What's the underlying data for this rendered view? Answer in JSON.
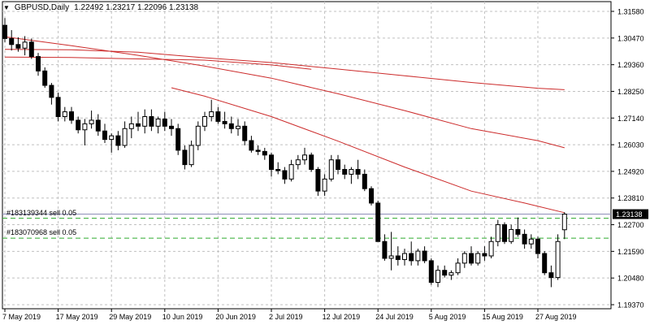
{
  "header": {
    "symbol_timeframe": "GBPUSD,Daily",
    "ohlc": "1.22492 1.23217 1.22096 1.23138",
    "menu_icon": "triangle-down-icon"
  },
  "orders": [
    {
      "label": "#183139344 sell 0.05",
      "price": 1.2297
    },
    {
      "label": "#183070968 sell 0.05",
      "price": 1.2214
    }
  ],
  "bid_label": "1.23138",
  "colors": {
    "background": "#ffffff",
    "grid": "#c0c0c0",
    "candle": "#000000",
    "ma": "#cc2b2b",
    "order_line": "#2eaa2e",
    "bid_line": "#8e8eb8",
    "bid_label_bg": "#000000"
  },
  "chart_data": {
    "type": "candlestick",
    "symbol": "GBPUSD",
    "timeframe": "Daily",
    "price_ticks": [
      "1.31580",
      "1.30470",
      "1.29360",
      "1.28250",
      "1.27140",
      "1.26030",
      "1.24920",
      "1.23810",
      "1.22700",
      "1.21590",
      "1.20480",
      "1.19370"
    ],
    "ylim": [
      1.1937,
      1.3158
    ],
    "date_labels": [
      {
        "label": "7 May 2019",
        "index": 0
      },
      {
        "label": "17 May 2019",
        "index": 8
      },
      {
        "label": "29 May 2019",
        "index": 16
      },
      {
        "label": "10 Jun 2019",
        "index": 24
      },
      {
        "label": "20 Jun 2019",
        "index": 32
      },
      {
        "label": "2 Jul 2019",
        "index": 40
      },
      {
        "label": "12 Jul 2019",
        "index": 48
      },
      {
        "label": "24 Jul 2019",
        "index": 56
      },
      {
        "label": "5 Aug 2019",
        "index": 64
      },
      {
        "label": "15 Aug 2019",
        "index": 72
      },
      {
        "label": "27 Aug 2019",
        "index": 80
      }
    ],
    "candles": [
      [
        1.31,
        1.313,
        1.303,
        1.3045
      ],
      [
        1.3045,
        1.308,
        1.2995,
        1.302
      ],
      [
        1.302,
        1.305,
        1.299,
        1.3005
      ],
      [
        1.3005,
        1.3055,
        1.2975,
        1.303
      ],
      [
        1.303,
        1.3045,
        1.296,
        1.297
      ],
      [
        1.297,
        1.2985,
        1.289,
        1.291
      ],
      [
        1.291,
        1.2925,
        1.284,
        1.285
      ],
      [
        1.285,
        1.286,
        1.277,
        1.28
      ],
      [
        1.28,
        1.282,
        1.27,
        1.272
      ],
      [
        1.272,
        1.276,
        1.27,
        1.274
      ],
      [
        1.274,
        1.276,
        1.269,
        1.2705
      ],
      [
        1.2705,
        1.272,
        1.265,
        1.2665
      ],
      [
        1.2665,
        1.271,
        1.26,
        1.269
      ],
      [
        1.269,
        1.2745,
        1.267,
        1.2705
      ],
      [
        1.2705,
        1.273,
        1.264,
        1.266
      ],
      [
        1.266,
        1.269,
        1.261,
        1.2625
      ],
      [
        1.2625,
        1.265,
        1.257,
        1.264
      ],
      [
        1.264,
        1.266,
        1.258,
        1.26
      ],
      [
        1.26,
        1.27,
        1.259,
        1.267
      ],
      [
        1.267,
        1.272,
        1.263,
        1.269
      ],
      [
        1.269,
        1.274,
        1.266,
        1.268
      ],
      [
        1.268,
        1.275,
        1.265,
        1.272
      ],
      [
        1.272,
        1.275,
        1.266,
        1.268
      ],
      [
        1.268,
        1.272,
        1.265,
        1.271
      ],
      [
        1.271,
        1.274,
        1.266,
        1.268
      ],
      [
        1.268,
        1.271,
        1.264,
        1.267
      ],
      [
        1.267,
        1.269,
        1.256,
        1.258
      ],
      [
        1.258,
        1.26,
        1.25,
        1.252
      ],
      [
        1.252,
        1.262,
        1.251,
        1.26
      ],
      [
        1.26,
        1.27,
        1.258,
        1.268
      ],
      [
        1.268,
        1.274,
        1.266,
        1.272
      ],
      [
        1.272,
        1.279,
        1.27,
        1.274
      ],
      [
        1.274,
        1.276,
        1.269,
        1.27
      ],
      [
        1.27,
        1.274,
        1.267,
        1.269
      ],
      [
        1.269,
        1.272,
        1.265,
        1.267
      ],
      [
        1.267,
        1.271,
        1.264,
        1.268
      ],
      [
        1.268,
        1.27,
        1.26,
        1.262
      ],
      [
        1.262,
        1.264,
        1.257,
        1.258
      ],
      [
        1.258,
        1.26,
        1.256,
        1.2575
      ],
      [
        1.2575,
        1.259,
        1.254,
        1.256
      ],
      [
        1.256,
        1.257,
        1.247,
        1.25
      ],
      [
        1.25,
        1.253,
        1.248,
        1.2495
      ],
      [
        1.2495,
        1.251,
        1.244,
        1.246
      ],
      [
        1.246,
        1.254,
        1.245,
        1.252
      ],
      [
        1.252,
        1.256,
        1.25,
        1.254
      ],
      [
        1.254,
        1.259,
        1.252,
        1.256
      ],
      [
        1.256,
        1.257,
        1.249,
        1.25
      ],
      [
        1.25,
        1.251,
        1.239,
        1.241
      ],
      [
        1.241,
        1.248,
        1.239,
        1.246
      ],
      [
        1.246,
        1.256,
        1.245,
        1.254
      ],
      [
        1.254,
        1.256,
        1.248,
        1.25
      ],
      [
        1.25,
        1.252,
        1.246,
        1.248
      ],
      [
        1.248,
        1.251,
        1.244,
        1.25
      ],
      [
        1.25,
        1.254,
        1.246,
        1.248
      ],
      [
        1.248,
        1.25,
        1.241,
        1.242
      ],
      [
        1.242,
        1.243,
        1.235,
        1.236
      ],
      [
        1.236,
        1.237,
        1.22,
        1.22
      ],
      [
        1.22,
        1.223,
        1.212,
        1.213
      ],
      [
        1.213,
        1.224,
        1.208,
        1.214
      ],
      [
        1.214,
        1.218,
        1.21,
        1.2125
      ],
      [
        1.2125,
        1.217,
        1.21,
        1.215
      ],
      [
        1.215,
        1.22,
        1.21,
        1.212
      ],
      [
        1.212,
        1.217,
        1.21,
        1.216
      ],
      [
        1.216,
        1.218,
        1.211,
        1.212
      ],
      [
        1.212,
        1.213,
        1.202,
        1.203
      ],
      [
        1.203,
        1.21,
        1.201,
        1.208
      ],
      [
        1.208,
        1.21,
        1.205,
        1.206
      ],
      [
        1.206,
        1.208,
        1.204,
        1.207
      ],
      [
        1.207,
        1.213,
        1.206,
        1.211
      ],
      [
        1.211,
        1.216,
        1.209,
        1.215
      ],
      [
        1.215,
        1.218,
        1.21,
        1.211
      ],
      [
        1.211,
        1.216,
        1.21,
        1.215
      ],
      [
        1.215,
        1.218,
        1.212,
        1.214
      ],
      [
        1.214,
        1.222,
        1.213,
        1.22
      ],
      [
        1.22,
        1.229,
        1.218,
        1.227
      ],
      [
        1.227,
        1.228,
        1.219,
        1.22
      ],
      [
        1.22,
        1.227,
        1.219,
        1.225
      ],
      [
        1.225,
        1.23,
        1.222,
        1.223
      ],
      [
        1.223,
        1.225,
        1.217,
        1.219
      ],
      [
        1.219,
        1.223,
        1.217,
        1.221
      ],
      [
        1.221,
        1.222,
        1.213,
        1.215
      ],
      [
        1.215,
        1.216,
        1.206,
        1.207
      ],
      [
        1.207,
        1.21,
        1.201,
        1.205
      ],
      [
        1.205,
        1.223,
        1.204,
        1.22
      ],
      [
        1.2249,
        1.2322,
        1.221,
        1.2314
      ]
    ],
    "moving_averages": [
      {
        "points": [
          [
            0,
            1.3
          ],
          [
            10,
            1.2998
          ],
          [
            20,
            1.2988
          ],
          [
            30,
            1.2965
          ],
          [
            40,
            1.2945
          ],
          [
            50,
            1.2918
          ],
          [
            60,
            1.289
          ],
          [
            70,
            1.2862
          ],
          [
            80,
            1.2838
          ],
          [
            84,
            1.2832
          ]
        ]
      },
      {
        "points": [
          [
            0,
            1.3052
          ],
          [
            10,
            1.3015
          ],
          [
            20,
            1.2975
          ],
          [
            30,
            1.293
          ],
          [
            40,
            1.288
          ],
          [
            50,
            1.2815
          ],
          [
            60,
            1.2745
          ],
          [
            70,
            1.267
          ],
          [
            80,
            1.262
          ],
          [
            84,
            1.259
          ]
        ]
      },
      {
        "points": [
          [
            0,
            1.2968
          ],
          [
            10,
            1.2966
          ],
          [
            20,
            1.296
          ],
          [
            30,
            1.2955
          ],
          [
            40,
            1.2935
          ],
          [
            46,
            1.2917
          ]
        ]
      },
      {
        "points": [
          [
            25,
            1.284
          ],
          [
            30,
            1.2805
          ],
          [
            40,
            1.272
          ],
          [
            50,
            1.2618
          ],
          [
            60,
            1.251
          ],
          [
            70,
            1.241
          ],
          [
            78,
            1.236
          ],
          [
            84,
            1.232
          ]
        ]
      }
    ]
  }
}
